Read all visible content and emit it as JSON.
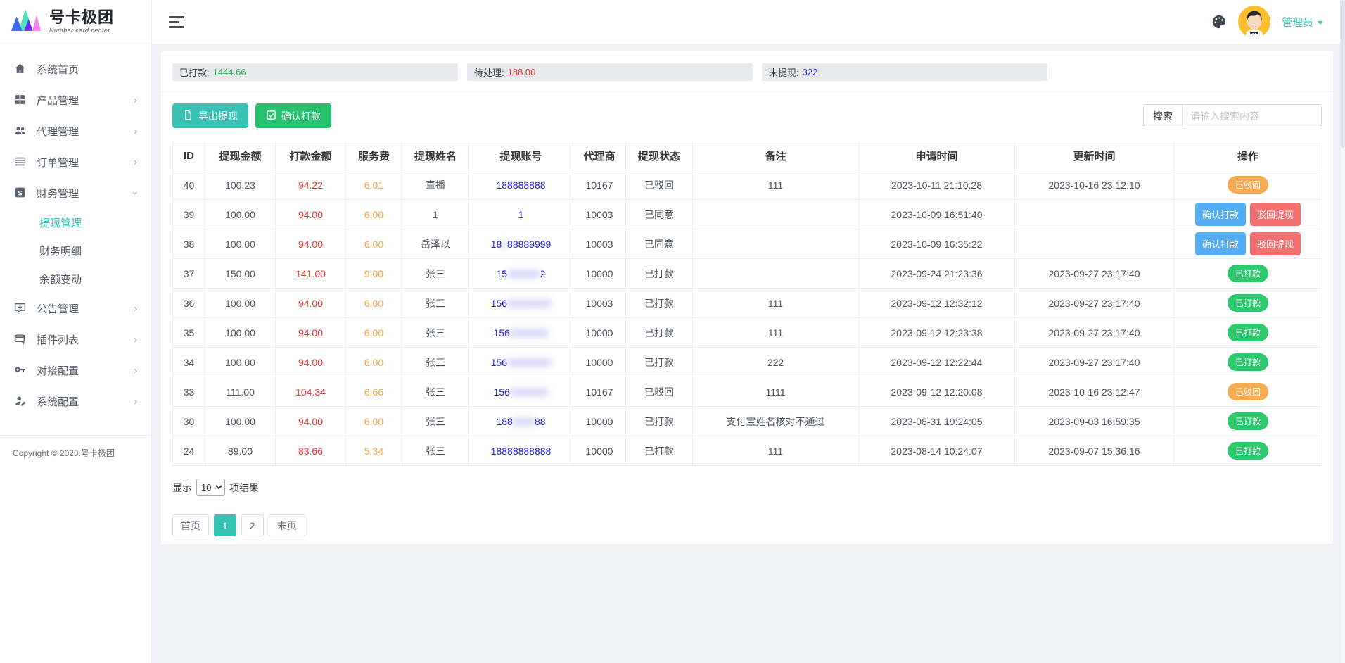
{
  "brand": {
    "name": "号卡极团",
    "subtitle": "Number card center"
  },
  "header": {
    "user": "管理员"
  },
  "sidebar": {
    "items": [
      {
        "icon": "home-icon",
        "label": "系统首页",
        "chevron": false
      },
      {
        "icon": "products-icon",
        "label": "产品管理",
        "chevron": true
      },
      {
        "icon": "agents-icon",
        "label": "代理管理",
        "chevron": true
      },
      {
        "icon": "orders-icon",
        "label": "订单管理",
        "chevron": true
      },
      {
        "icon": "finance-icon",
        "label": "财务管理",
        "chevron": true,
        "expanded": true,
        "children": [
          {
            "label": "提现管理",
            "active": true
          },
          {
            "label": "财务明细",
            "active": false
          },
          {
            "label": "余额变动",
            "active": false
          }
        ]
      },
      {
        "icon": "announcement-icon",
        "label": "公告管理",
        "chevron": true
      },
      {
        "icon": "plugins-icon",
        "label": "插件列表",
        "chevron": true
      },
      {
        "icon": "integration-icon",
        "label": "对接配置",
        "chevron": true
      },
      {
        "icon": "system-icon",
        "label": "系统配置",
        "chevron": true
      }
    ],
    "copyright": "Copyright © 2023.号卡极团"
  },
  "stats": [
    {
      "label": "已打款:",
      "value": "1444.66",
      "color": "#1fae4e"
    },
    {
      "label": "待处理:",
      "value": "188.00",
      "color": "#f22f2f"
    },
    {
      "label": "未提现:",
      "value": "322",
      "color": "#2b2bdf"
    }
  ],
  "toolbar": {
    "export_label": "导出提现",
    "confirm_label": "确认打款",
    "search_label": "搜索",
    "search_placeholder": "请输入搜索内容"
  },
  "table": {
    "columns": [
      "ID",
      "提现金额",
      "打款金额",
      "服务费",
      "提现姓名",
      "提现账号",
      "代理商",
      "提现状态",
      "备注",
      "申请时间",
      "更新时间",
      "操作"
    ],
    "rows": [
      {
        "id": "40",
        "amount": "100.23",
        "pay": "94.22",
        "fee": "6.01",
        "name": "直播",
        "account": {
          "prefix": "188888888",
          "blur": "",
          "suffix": ""
        },
        "agent": "10167",
        "status": "已驳回",
        "remark": "111",
        "applied": "2023-10-11 21:10:28",
        "updated": "2023-10-16 23:12:10",
        "action": {
          "type": "pill",
          "label": "已驳回",
          "style": "orange"
        }
      },
      {
        "id": "39",
        "amount": "100.00",
        "pay": "94.00",
        "fee": "6.00",
        "name": "1",
        "account": {
          "prefix": "1",
          "blur": "",
          "suffix": ""
        },
        "agent": "10003",
        "status": "已同意",
        "remark": "",
        "applied": "2023-10-09 16:51:40",
        "updated": "",
        "action": {
          "type": "buttons",
          "buttons": [
            {
              "label": "确认打款",
              "style": "blue"
            },
            {
              "label": "驳回提现",
              "style": "red"
            }
          ]
        }
      },
      {
        "id": "38",
        "amount": "100.00",
        "pay": "94.00",
        "fee": "6.00",
        "name": "岳泽以",
        "account": {
          "prefix": "18",
          "blur": "8",
          "suffix": "88889999"
        },
        "agent": "10003",
        "status": "已同意",
        "remark": "",
        "applied": "2023-10-09 16:35:22",
        "updated": "",
        "action": {
          "type": "buttons",
          "buttons": [
            {
              "label": "确认打款",
              "style": "blue"
            },
            {
              "label": "驳回提现",
              "style": "red"
            }
          ]
        }
      },
      {
        "id": "37",
        "amount": "150.00",
        "pay": "141.00",
        "fee": "9.00",
        "name": "张三",
        "account": {
          "prefix": "15",
          "blur": "888888",
          "suffix": "2"
        },
        "agent": "10000",
        "status": "已打款",
        "remark": "",
        "applied": "2023-09-24 21:23:36",
        "updated": "2023-09-27 23:17:40",
        "action": {
          "type": "pill",
          "label": "已打款",
          "style": "green"
        }
      },
      {
        "id": "36",
        "amount": "100.00",
        "pay": "94.00",
        "fee": "6.00",
        "name": "张三",
        "account": {
          "prefix": "156",
          "blur": "88888888",
          "suffix": ""
        },
        "agent": "10003",
        "status": "已打款",
        "remark": "111",
        "applied": "2023-09-12 12:32:12",
        "updated": "2023-09-27 23:17:40",
        "action": {
          "type": "pill",
          "label": "已打款",
          "style": "green"
        }
      },
      {
        "id": "35",
        "amount": "100.00",
        "pay": "94.00",
        "fee": "6.00",
        "name": "张三",
        "account": {
          "prefix": "156",
          "blur": "8888888",
          "suffix": ""
        },
        "agent": "10000",
        "status": "已打款",
        "remark": "111",
        "applied": "2023-09-12 12:23:38",
        "updated": "2023-09-27 23:17:40",
        "action": {
          "type": "pill",
          "label": "已打款",
          "style": "green"
        }
      },
      {
        "id": "34",
        "amount": "100.00",
        "pay": "94.00",
        "fee": "6.00",
        "name": "张三",
        "account": {
          "prefix": "156",
          "blur": "88888888",
          "suffix": ""
        },
        "agent": "10000",
        "status": "已打款",
        "remark": "222",
        "applied": "2023-09-12 12:22:44",
        "updated": "2023-09-27 23:17:40",
        "action": {
          "type": "pill",
          "label": "已打款",
          "style": "green"
        }
      },
      {
        "id": "33",
        "amount": "111.00",
        "pay": "104.34",
        "fee": "6.66",
        "name": "张三",
        "account": {
          "prefix": "156",
          "blur": "8888888",
          "suffix": ""
        },
        "agent": "10167",
        "status": "已驳回",
        "remark": "1111",
        "applied": "2023-09-12 12:20:08",
        "updated": "2023-10-16 23:12:47",
        "action": {
          "type": "pill",
          "label": "已驳回",
          "style": "orange"
        }
      },
      {
        "id": "30",
        "amount": "100.00",
        "pay": "94.00",
        "fee": "6.00",
        "name": "张三",
        "account": {
          "prefix": "188",
          "blur": "8888",
          "suffix": "88"
        },
        "agent": "10000",
        "status": "已打款",
        "remark": "支付宝姓名核对不通过",
        "applied": "2023-08-31 19:24:05",
        "updated": "2023-09-03 16:59:35",
        "action": {
          "type": "pill",
          "label": "已打款",
          "style": "green"
        }
      },
      {
        "id": "24",
        "amount": "89.00",
        "pay": "83.66",
        "fee": "5.34",
        "name": "张三",
        "account": {
          "prefix": "18888888888",
          "blur": "",
          "suffix": ""
        },
        "agent": "10000",
        "status": "已打款",
        "remark": "111",
        "applied": "2023-08-14 10:24:07",
        "updated": "2023-09-07 15:36:16",
        "action": {
          "type": "pill",
          "label": "已打款",
          "style": "green"
        }
      }
    ]
  },
  "pagination": {
    "show_label": "显示",
    "results_label": "项结果",
    "page_size": "10",
    "pages": [
      {
        "label": "首页",
        "active": false
      },
      {
        "label": "1",
        "active": true
      },
      {
        "label": "2",
        "active": false
      },
      {
        "label": "末页",
        "active": false
      }
    ]
  }
}
